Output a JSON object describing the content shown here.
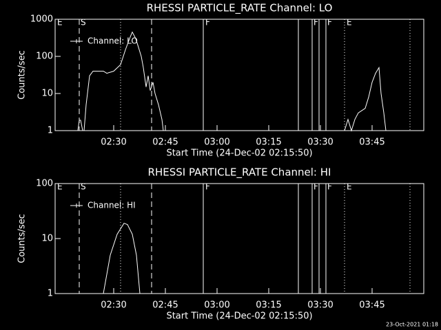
{
  "chart_data": [
    {
      "type": "line",
      "title": "RHESSI PARTICLE_RATE Channel: LO",
      "xlabel": "Start Time (24-Dec-02 02:15:50)",
      "ylabel": "Counts/sec",
      "yscale": "log",
      "legend": "upper left",
      "xlim": [
        133,
        240
      ],
      "ylim": [
        1,
        1000
      ],
      "xticks": [
        {
          "value": 150,
          "label": "02:30"
        },
        {
          "value": 165,
          "label": "02:45"
        },
        {
          "value": 180,
          "label": "03:00"
        },
        {
          "value": 195,
          "label": "03:15"
        },
        {
          "value": 210,
          "label": "03:30"
        },
        {
          "value": 225,
          "label": "03:45"
        }
      ],
      "yticks": [
        1,
        10,
        100,
        1000
      ],
      "vlines": [
        {
          "x": 140,
          "style": "dashed"
        },
        {
          "x": 161,
          "style": "dashed"
        },
        {
          "x": 152,
          "style": "dotted"
        },
        {
          "x": 217,
          "style": "dotted"
        },
        {
          "x": 236,
          "style": "dotted"
        },
        {
          "x": 176,
          "style": "solid"
        },
        {
          "x": 203.6,
          "style": "solid"
        },
        {
          "x": 207.6,
          "style": "solid"
        },
        {
          "x": 209.6,
          "style": "solid"
        },
        {
          "x": 211.6,
          "style": "solid"
        }
      ],
      "markers": [
        {
          "x": 133.6,
          "label": "E"
        },
        {
          "x": 140.4,
          "label": "S"
        },
        {
          "x": 176.6,
          "label": "F"
        },
        {
          "x": 208,
          "label": "F"
        },
        {
          "x": 212,
          "label": "F"
        },
        {
          "x": 217.6,
          "label": "E"
        }
      ],
      "series": [
        {
          "name": "Channel: LO",
          "color": "#ffffff",
          "x": [
            139.6,
            140,
            140.4,
            141,
            141.4,
            142,
            143,
            144,
            145,
            147,
            148,
            150,
            152,
            153.4,
            154.6,
            155.4,
            156.4,
            157,
            158,
            158.6,
            159.4,
            160,
            160.6,
            161.4,
            162,
            163,
            164,
            164.4,
            190,
            217,
            218,
            219,
            220,
            221,
            223,
            224,
            225,
            226,
            227,
            227.6,
            228.4,
            229
          ],
          "values": [
            1,
            1.9,
            1.9,
            1,
            1,
            5,
            30,
            40,
            40,
            40,
            35,
            40,
            60,
            150,
            300,
            450,
            300,
            200,
            100,
            50,
            15,
            30,
            12,
            20,
            10,
            5,
            2,
            1,
            null,
            1,
            2,
            1,
            2,
            3,
            4,
            8,
            20,
            35,
            50,
            10,
            3,
            1
          ]
        }
      ]
    },
    {
      "type": "line",
      "title": "RHESSI PARTICLE_RATE Channel: HI",
      "xlabel": "Start Time (24-Dec-02 02:15:50)",
      "ylabel": "Counts/sec",
      "yscale": "log",
      "legend": "upper left",
      "xlim": [
        133,
        240
      ],
      "ylim": [
        1,
        100
      ],
      "xticks": [
        {
          "value": 150,
          "label": "02:30"
        },
        {
          "value": 165,
          "label": "02:45"
        },
        {
          "value": 180,
          "label": "03:00"
        },
        {
          "value": 195,
          "label": "03:15"
        },
        {
          "value": 210,
          "label": "03:30"
        },
        {
          "value": 225,
          "label": "03:45"
        }
      ],
      "yticks": [
        1,
        10,
        100
      ],
      "vlines": [
        {
          "x": 140,
          "style": "dashed"
        },
        {
          "x": 161,
          "style": "dashed"
        },
        {
          "x": 152,
          "style": "dotted"
        },
        {
          "x": 217,
          "style": "dotted"
        },
        {
          "x": 236,
          "style": "dotted"
        },
        {
          "x": 176,
          "style": "solid"
        },
        {
          "x": 203.6,
          "style": "solid"
        },
        {
          "x": 207.6,
          "style": "solid"
        },
        {
          "x": 209.6,
          "style": "solid"
        },
        {
          "x": 211.6,
          "style": "solid"
        }
      ],
      "markers": [
        {
          "x": 133.6,
          "label": "E"
        },
        {
          "x": 140.4,
          "label": "S"
        },
        {
          "x": 176.6,
          "label": "F"
        },
        {
          "x": 208,
          "label": "F"
        },
        {
          "x": 212,
          "label": "F"
        },
        {
          "x": 217.6,
          "label": "E"
        }
      ],
      "series": [
        {
          "name": "Channel: HI",
          "color": "#ffffff",
          "x": [
            147,
            149,
            151,
            153,
            154,
            155.4,
            156.6,
            157.6
          ],
          "values": [
            1,
            5,
            12,
            19,
            18,
            12,
            5,
            1
          ]
        }
      ]
    }
  ],
  "footer": "23-Oct-2021 01:18"
}
